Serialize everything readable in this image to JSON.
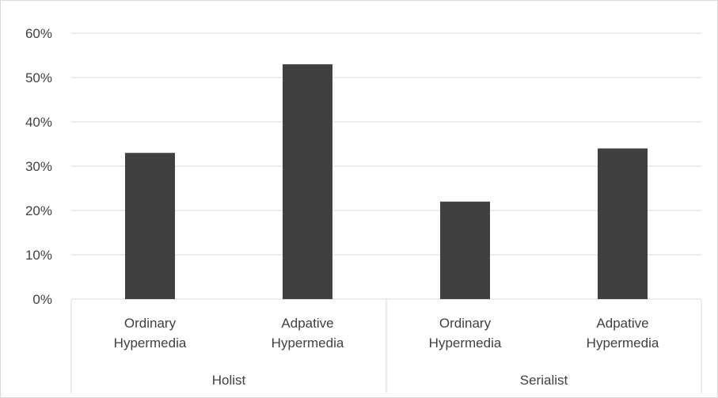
{
  "chart_data": {
    "type": "bar",
    "groups": [
      {
        "name": "Holist",
        "categories": [
          "Ordinary Hypermedia",
          "Adpative Hypermedia"
        ]
      },
      {
        "name": "Serialist",
        "categories": [
          "Ordinary Hypermedia",
          "Adpative Hypermedia"
        ]
      }
    ],
    "category_lines": [
      [
        "Ordinary",
        "Hypermedia"
      ],
      [
        "Adpative",
        "Hypermedia"
      ],
      [
        "Ordinary",
        "Hypermedia"
      ],
      [
        "Adpative",
        "Hypermedia"
      ]
    ],
    "values": [
      33,
      53,
      22,
      34
    ],
    "y_ticks": [
      "0%",
      "10%",
      "20%",
      "30%",
      "40%",
      "50%",
      "60%"
    ],
    "ylim": [
      0,
      60
    ],
    "grid": true,
    "bar_color": "#404040",
    "grid_color": "#d9d9d9",
    "title": "",
    "xlabel": "",
    "ylabel": ""
  }
}
